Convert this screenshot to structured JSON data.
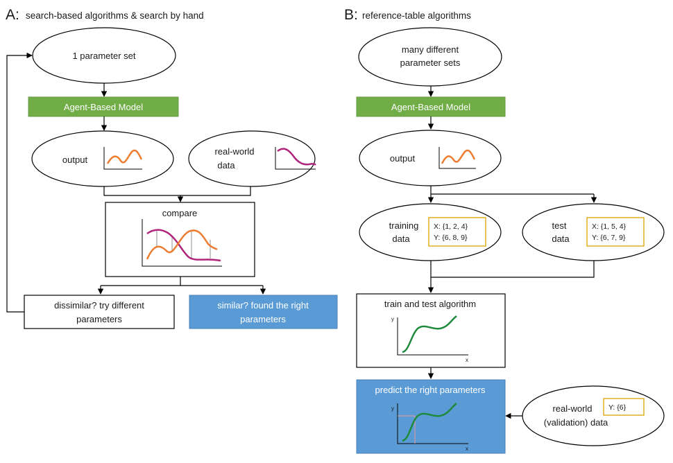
{
  "panel_a": {
    "letter": "A:",
    "title": "search-based algorithms & search by hand",
    "param_set": "1 parameter set",
    "model": "Agent-Based Model",
    "output": "output",
    "realworld_line1": "real-world",
    "realworld_line2": "data",
    "compare": "compare",
    "dissimilar_line1": "dissimilar? try different",
    "dissimilar_line2": "parameters",
    "similar_line1": "similar? found the right",
    "similar_line2": "parameters"
  },
  "panel_b": {
    "letter": "B:",
    "title": "reference-table algorithms",
    "param_sets_line1": "many different",
    "param_sets_line2": "parameter sets",
    "model": "Agent-Based Model",
    "output": "output",
    "training_line1": "training",
    "training_line2": "data",
    "training_x": "X: {1, 2, 4}",
    "training_y": "Y: {6, 8, 9}",
    "test_line1": "test",
    "test_line2": "data",
    "test_x": "X: {1, 5, 4}",
    "test_y": "Y: {6, 7, 9}",
    "train_test": "train and test algorithm",
    "axis_y": "y",
    "axis_x": "x",
    "predict": "predict the right parameters",
    "validation_line1": "real-world",
    "validation_line2": "(validation) data",
    "validation_y": "Y: {6}"
  },
  "colors": {
    "model_box": "#70ad47",
    "result_box": "#5b9bd5",
    "output_curve": "#ed7d31",
    "realworld_curve": "#b0247c",
    "algorithm_curve": "#1e8a3c",
    "value_box_border": "#d9a400"
  }
}
